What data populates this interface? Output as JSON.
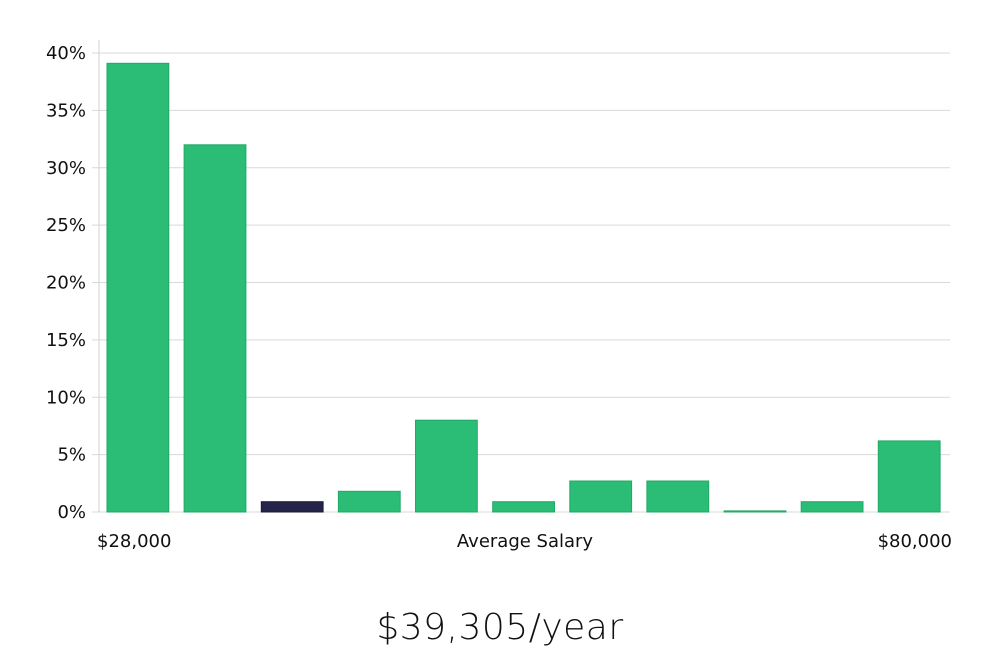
{
  "chart_data": {
    "type": "bar",
    "xlabel": "Average Salary",
    "x_range_labels": [
      "$28,000",
      "$80,000"
    ],
    "y_ticks": [
      "0%",
      "5%",
      "10%",
      "15%",
      "20%",
      "25%",
      "30%",
      "35%",
      "40%"
    ],
    "ylim": [
      0,
      40
    ],
    "grid": true,
    "legend": "none",
    "values": [
      39.1,
      32.0,
      0.9,
      1.8,
      8.0,
      0.9,
      2.7,
      2.7,
      0.1,
      0.9,
      6.2
    ],
    "highlight_index": 2,
    "colors": {
      "bar": "#2bbd75",
      "highlight": "#24234a",
      "grid": "#d9d9d9"
    }
  },
  "summary": {
    "salary_text": "$39,305/year"
  }
}
